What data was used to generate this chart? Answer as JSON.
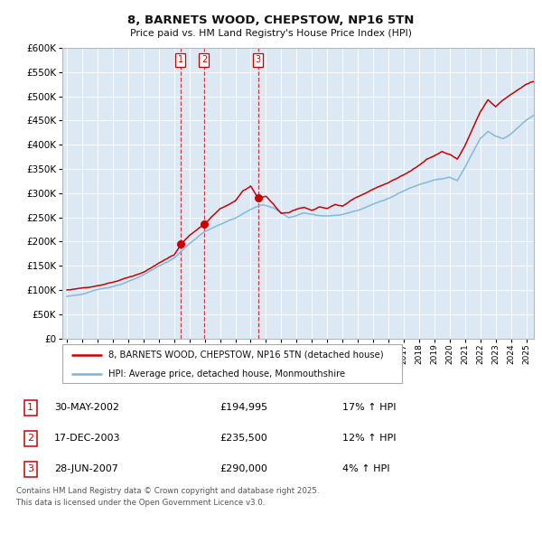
{
  "title": "8, BARNETS WOOD, CHEPSTOW, NP16 5TN",
  "subtitle": "Price paid vs. HM Land Registry's House Price Index (HPI)",
  "legend_line1": "8, BARNETS WOOD, CHEPSTOW, NP16 5TN (detached house)",
  "legend_line2": "HPI: Average price, detached house, Monmouthshire",
  "sale1_date": "30-MAY-2002",
  "sale1_price": "£194,995",
  "sale1_hpi": "17% ↑ HPI",
  "sale1_year": 2002.41,
  "sale1_value": 194995,
  "sale2_date": "17-DEC-2003",
  "sale2_price": "£235,500",
  "sale2_hpi": "12% ↑ HPI",
  "sale2_year": 2003.96,
  "sale2_value": 235500,
  "sale3_date": "28-JUN-2007",
  "sale3_price": "£290,000",
  "sale3_hpi": "4% ↑ HPI",
  "sale3_year": 2007.49,
  "sale3_value": 290000,
  "hpi_color": "#7ab3d9",
  "sale_color": "#cc0000",
  "plot_bg": "#dce9f5",
  "fig_bg": "#ffffff",
  "grid_color": "#ffffff",
  "footnote": "Contains HM Land Registry data © Crown copyright and database right 2025.\nThis data is licensed under the Open Government Licence v3.0.",
  "ylim": [
    0,
    600000
  ],
  "yticks": [
    0,
    50000,
    100000,
    150000,
    200000,
    250000,
    300000,
    350000,
    400000,
    450000,
    500000,
    550000,
    600000
  ],
  "xlim_start": 1994.7,
  "xlim_end": 2025.5
}
